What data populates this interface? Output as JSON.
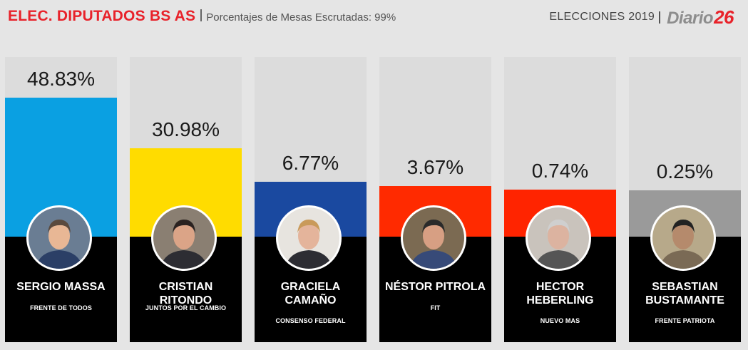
{
  "header": {
    "title": "ELEC. DIPUTADOS BS AS",
    "subtitle": "Porcentajes de Mesas Escrutadas: 99%",
    "elections_label": "ELECCIONES",
    "year": "2019",
    "logo_text": "Diario",
    "logo_number": "26"
  },
  "colors": {
    "massa": "#0aa0e2",
    "ritondo": "#ffdc00",
    "camano": "#1a49a0",
    "pitrola": "#ff2a00",
    "heberling": "#ff2400",
    "bustamante": "#9a9a9a"
  },
  "chart_data": {
    "type": "bar",
    "title": "ELEC. DIPUTADOS BS AS",
    "categories": [
      "SERGIO MASSA",
      "CRISTIAN RITONDO",
      "GRACIELA CAMAÑO",
      "NÉSTOR PITROLA",
      "HECTOR HEBERLING",
      "SEBASTIAN BUSTAMANTE"
    ],
    "parties": [
      "FRENTE DE TODOS",
      "JUNTOS POR EL CAMBIO",
      "CONSENSO FEDERAL",
      "FIT",
      "NUEVO MAS",
      "FRENTE PATRIOTA"
    ],
    "values": [
      48.83,
      30.98,
      6.77,
      3.67,
      0.74,
      0.25
    ],
    "labels": [
      "48.83%",
      "30.98%",
      "6.77%",
      "3.67%",
      "0.74%",
      "0.25%"
    ],
    "name_lines": [
      [
        "SERGIO MASSA"
      ],
      [
        "CRISTIAN RITONDO"
      ],
      [
        "GRACIELA",
        "CAMAÑO"
      ],
      [
        "NÉSTOR PITROLA"
      ],
      [
        "HECTOR",
        "HEBERLING"
      ],
      [
        "SEBASTIAN",
        "BUSTAMANTE"
      ]
    ],
    "colors": [
      "#0aa0e2",
      "#ffdc00",
      "#1a49a0",
      "#ff2a00",
      "#ff2400",
      "#9a9a9a"
    ],
    "ylim": [
      0,
      50
    ],
    "legend": "none",
    "grid": false
  }
}
